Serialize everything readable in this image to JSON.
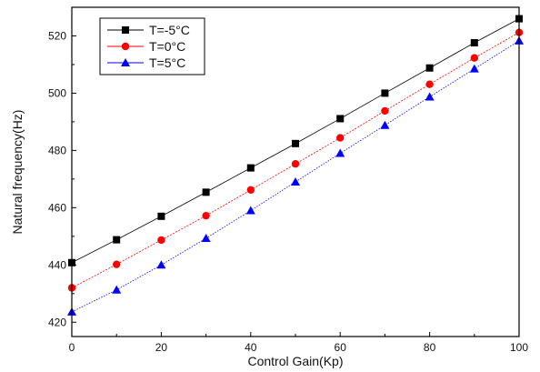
{
  "chart_data": {
    "type": "line",
    "xlabel": "Control Gain(Kp)",
    "ylabel": "Natural frequency(Hz)",
    "xlim": [
      0,
      100
    ],
    "ylim": [
      415,
      530
    ],
    "xticks": [
      "0",
      "20",
      "40",
      "60",
      "80",
      "100"
    ],
    "yticks": [
      "420",
      "440",
      "460",
      "480",
      "500",
      "520"
    ],
    "legend_position": "top-left",
    "grid": false,
    "x": [
      0,
      10,
      20,
      30,
      40,
      50,
      60,
      70,
      80,
      90,
      100
    ],
    "series": [
      {
        "name": "T=-5°C",
        "color": "#000000",
        "marker": "square",
        "values": [
          440.8,
          448.8,
          457.0,
          465.4,
          473.9,
          482.4,
          491.1,
          500.0,
          508.8,
          517.6,
          526.0
        ]
      },
      {
        "name": "T=0°C",
        "color": "#ff0000",
        "marker": "circle",
        "values": [
          432.0,
          440.2,
          448.7,
          457.2,
          466.2,
          475.3,
          484.4,
          493.8,
          503.1,
          512.3,
          521.2
        ]
      },
      {
        "name": "T=5°C",
        "color": "#0000ff",
        "marker": "triangle",
        "values": [
          423.6,
          431.3,
          440.0,
          449.3,
          459.0,
          469.0,
          479.0,
          488.8,
          498.7,
          508.5,
          518.3
        ]
      }
    ]
  }
}
